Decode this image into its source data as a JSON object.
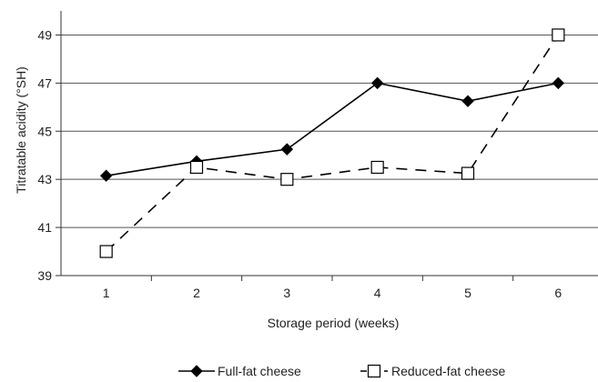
{
  "chart_data": {
    "type": "line",
    "title": "",
    "xlabel": "Storage period (weeks)",
    "ylabel": "Titratable acidity (°SH)",
    "x": [
      "1",
      "2",
      "3",
      "4",
      "5",
      "6"
    ],
    "ylim": [
      39,
      50
    ],
    "yticks": [
      "39",
      "41",
      "43",
      "45",
      "47",
      "49"
    ],
    "grid": "horizontal",
    "legend_position": "bottom",
    "series": [
      {
        "name": "Full-fat cheese",
        "values": [
          43.15,
          43.75,
          44.25,
          47.0,
          46.25,
          47.0
        ],
        "marker": "filled-diamond",
        "line": "solid",
        "color": "#000000"
      },
      {
        "name": "Reduced-fat cheese",
        "values": [
          40.0,
          43.5,
          43.0,
          43.5,
          43.25,
          49.0
        ],
        "marker": "open-square",
        "line": "dashed",
        "color": "#000000"
      }
    ]
  }
}
